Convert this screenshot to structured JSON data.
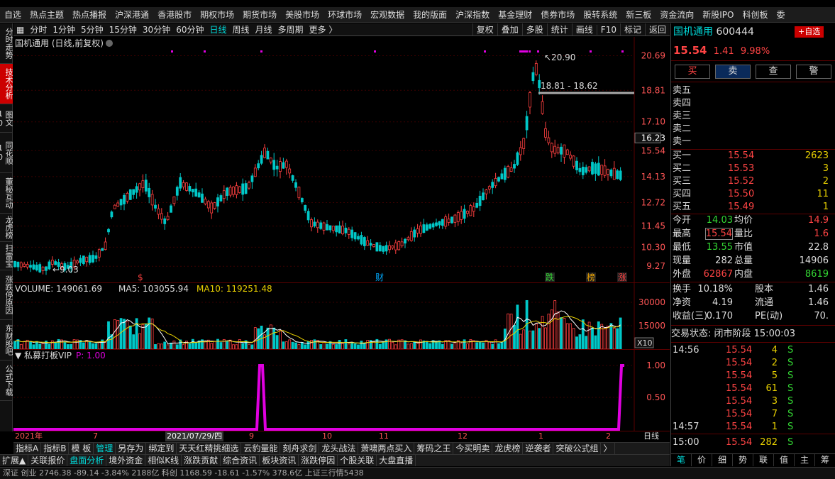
{
  "nav": [
    "自选",
    "热点主题",
    "热点播报",
    "沪深港通",
    "香港股市",
    "期权市场",
    "期货市场",
    "美股市场",
    "环球市场",
    "宏观数据",
    "我的版面",
    "沪深指数",
    "基金理财",
    "债券市场",
    "股转系统",
    "新三板",
    "资金流向",
    "新股IPO",
    "科创板",
    "委"
  ],
  "left_tabs": [
    "分时走势",
    "技术分析",
    "图文10",
    "同花顺10",
    "董秘互动",
    "龙虎榜",
    "扫雷宝",
    "涨跌停原因",
    "东财股吧",
    "公式下载"
  ],
  "toolbar": {
    "left": [
      "分时",
      "1分钟",
      "5分钟",
      "15分钟",
      "30分钟",
      "60分钟",
      "日线",
      "周线",
      "月线",
      "多周期",
      "更多 〉"
    ],
    "active": "日线",
    "right": [
      "复权",
      "叠加",
      "多股",
      "统计",
      "画线",
      "F10",
      "标记",
      "返回"
    ]
  },
  "chart_header": "国机通用 (日线,前复权)",
  "price_axis": [
    "20.69",
    "18.81",
    "17.10",
    "16.23",
    "15.54",
    "14.13",
    "12.72",
    "11.45",
    "10.30",
    "9.27"
  ],
  "annotations": {
    "high": "20.90",
    "low": "9.03",
    "range": "18.81 - 18.62"
  },
  "event_markers": [
    "$",
    "财",
    "跌",
    "榜",
    "涨"
  ],
  "volume": {
    "label": "VOLUME: 149061.69",
    "ma5": "MA5: 103055.94",
    "ma10": "MA10: 119251.48",
    "axis": [
      "30000",
      "15000"
    ],
    "unit": "X10"
  },
  "indicator": {
    "label": "私募打板VIP",
    "value": "P: 1.00",
    "axis": [
      "1.00",
      "0.50"
    ]
  },
  "time_axis": [
    "2021年",
    "7",
    "2021/07/29/四",
    "9",
    "10",
    "11",
    "12",
    "1",
    "2",
    "日线"
  ],
  "bottom_tabs_1": [
    "指标A",
    "指标B",
    "模 板",
    "管理",
    "另存为",
    "绑定到",
    "天天红精挑细选",
    "云豹量能",
    "刻舟求剑",
    "龙头战法",
    "萧啸两点买入",
    "筹码之王",
    "今买明卖",
    "龙虎榜",
    "逆袭者",
    "突破公式组",
    "〉"
  ],
  "bottom_tabs_1_active": "管理",
  "bottom_tabs_2": [
    "扩展▲",
    "关联报价",
    "盘面分析",
    "境外资金",
    "相似K线",
    "涨跌贡献",
    "综合资讯",
    "板块资讯",
    "涨跌停因",
    "个股关联",
    "大盘直播"
  ],
  "bottom_tabs_2_active": "盘面分析",
  "status_bar": "深证 创业 2746.38 -89.14 -3.84% 2188亿 科创 1168.59 -18.61 -1.57% 378.6亿      上证三行情5438",
  "quote": {
    "name": "国机通用",
    "code": "600444",
    "add_btn": "+自选",
    "price": "15.54",
    "change": "1.41",
    "pct": "9.98%",
    "buttons": [
      "买",
      "卖",
      "查",
      "警"
    ],
    "sell_levels": [
      "卖五",
      "卖四",
      "卖三",
      "卖二",
      "卖一"
    ],
    "buy_levels": [
      {
        "label": "买一",
        "price": "15.54",
        "vol": "2623"
      },
      {
        "label": "买二",
        "price": "15.53",
        "vol": "3"
      },
      {
        "label": "买三",
        "price": "15.52",
        "vol": "2"
      },
      {
        "label": "买四",
        "price": "15.50",
        "vol": "11"
      },
      {
        "label": "买五",
        "price": "15.49",
        "vol": "1"
      }
    ],
    "stats": [
      {
        "l1": "今开",
        "v1": "14.03",
        "l2": "均价",
        "v2": "14.9"
      },
      {
        "l1": "最高",
        "v1": "15.54",
        "l2": "量比",
        "v2": "1.6"
      },
      {
        "l1": "最低",
        "v1": "13.55",
        "l2": "市值",
        "v2": "22.8"
      },
      {
        "l1": "现量",
        "v1": "282",
        "l2": "总量",
        "v2": "14906"
      },
      {
        "l1": "外盘",
        "v1": "62867",
        "l2": "内盘",
        "v2": "8619"
      }
    ],
    "stats2": [
      {
        "l1": "换手",
        "v1": "10.18%",
        "l2": "股本",
        "v2": "1.46"
      },
      {
        "l1": "净资",
        "v1": "4.19",
        "l2": "流通",
        "v2": "1.46"
      },
      {
        "l1": "收益(三)",
        "v1": "0.170",
        "l2": "PE(动)",
        "v2": "70."
      }
    ],
    "trade_status": "交易状态: 闭市阶段 15:00:03",
    "ticks": [
      {
        "t": "14:56",
        "p": "15.54",
        "v": "4",
        "s": "S"
      },
      {
        "t": "",
        "p": "15.54",
        "v": "2",
        "s": "S"
      },
      {
        "t": "",
        "p": "15.54",
        "v": "5",
        "s": "S"
      },
      {
        "t": "",
        "p": "15.54",
        "v": "61",
        "s": "S"
      },
      {
        "t": "",
        "p": "15.54",
        "v": "3",
        "s": "S"
      },
      {
        "t": "",
        "p": "15.54",
        "v": "7",
        "s": "S"
      },
      {
        "t": "14:57",
        "p": "15.54",
        "v": "1",
        "s": "S"
      },
      {
        "t": "15:00",
        "p": "15.54",
        "v": "282",
        "s": "S"
      }
    ],
    "bottom_icons": [
      "笔",
      "价",
      "细",
      "势",
      "联",
      "值",
      "主",
      "筹"
    ]
  }
}
